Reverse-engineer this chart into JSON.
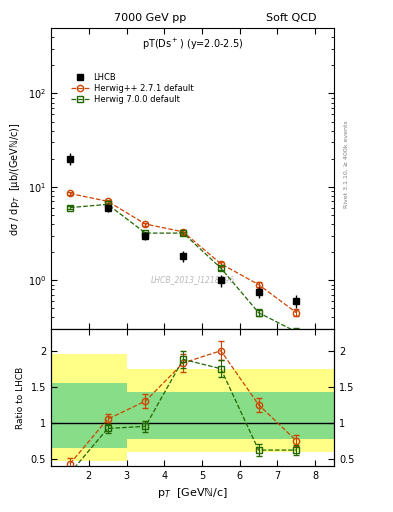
{
  "title_left": "7000 GeV pp",
  "title_right": "Soft QCD",
  "plot_title": "pT(Ds*) (y=2.0-2.5)",
  "ylabel_main": "dσ / dp_T  [μb/(GeVN/c)]",
  "ylabel_ratio": "Ratio to LHCB",
  "xlabel": "p_T  [GeVN/c]",
  "watermark": "LHCB_2013_I1218996",
  "side_text": "Rivet 3.1.10, ≥ 400k events",
  "ref_label": "LHCB",
  "mc1_label": "Herwig++ 2.7.1 default",
  "mc2_label": "Herwig 7.0.0 default",
  "lhcb_x": [
    1.5,
    2.5,
    3.5,
    4.5,
    5.5,
    6.5,
    7.5
  ],
  "lhcb_y": [
    20.0,
    6.0,
    3.0,
    1.8,
    1.0,
    0.75,
    0.6
  ],
  "lhcb_yerr": [
    3.0,
    0.6,
    0.3,
    0.25,
    0.15,
    0.1,
    0.1
  ],
  "mc1_x": [
    1.5,
    2.5,
    3.5,
    4.5,
    5.5,
    6.5,
    7.5
  ],
  "mc1_y": [
    8.5,
    7.0,
    4.0,
    3.3,
    1.5,
    0.9,
    0.45
  ],
  "mc1_yerr": [
    0.3,
    0.25,
    0.15,
    0.15,
    0.08,
    0.06,
    0.04
  ],
  "mc2_x": [
    1.5,
    2.5,
    3.5,
    4.5,
    5.5,
    6.5,
    7.5
  ],
  "mc2_y": [
    6.0,
    6.5,
    3.2,
    3.2,
    1.35,
    0.45,
    0.28
  ],
  "mc2_yerr": [
    0.25,
    0.2,
    0.12,
    0.12,
    0.06,
    0.04,
    0.03
  ],
  "ratio_mc1_y": [
    0.43,
    1.05,
    1.3,
    1.83,
    2.0,
    1.25,
    0.75
  ],
  "ratio_mc1_yerr": [
    0.08,
    0.07,
    0.1,
    0.12,
    0.13,
    0.1,
    0.08
  ],
  "ratio_mc2_y": [
    0.3,
    0.92,
    0.95,
    1.88,
    1.75,
    0.62,
    0.62
  ],
  "ratio_mc2_yerr": [
    0.06,
    0.06,
    0.08,
    0.12,
    0.12,
    0.08,
    0.07
  ],
  "yellow_band_edges": [
    1.0,
    2.0,
    3.0,
    5.0,
    6.0,
    7.0,
    8.5
  ],
  "yellow_band_lo": [
    0.47,
    0.47,
    0.6,
    0.6,
    0.6,
    0.6,
    0.6
  ],
  "yellow_band_hi": [
    1.95,
    1.95,
    1.75,
    1.75,
    1.75,
    1.75,
    1.75
  ],
  "green_band_edges": [
    1.0,
    2.0,
    3.0,
    5.0,
    6.0,
    7.0,
    8.5
  ],
  "green_band_lo": [
    0.65,
    0.65,
    0.78,
    0.78,
    0.78,
    0.78,
    0.78
  ],
  "green_band_hi": [
    1.55,
    1.55,
    1.42,
    1.42,
    1.42,
    1.42,
    1.42
  ],
  "mc1_color": "#cc4400",
  "mc2_color": "#226600",
  "ref_color": "#000000",
  "yellow_color": "#ffff88",
  "green_color": "#88dd88",
  "xlim": [
    1.0,
    8.5
  ],
  "ylim_main": [
    0.3,
    500
  ],
  "ylim_ratio": [
    0.4,
    2.3
  ],
  "ratio_yticks": [
    0.5,
    1.0,
    1.5,
    2.0
  ]
}
